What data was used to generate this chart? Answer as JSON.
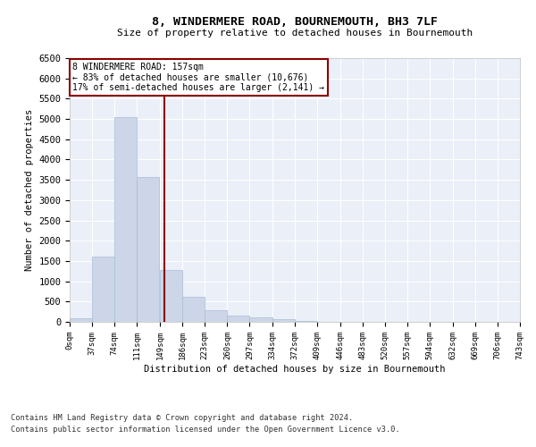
{
  "title": "8, WINDERMERE ROAD, BOURNEMOUTH, BH3 7LF",
  "subtitle": "Size of property relative to detached houses in Bournemouth",
  "xlabel": "Distribution of detached houses by size in Bournemouth",
  "ylabel": "Number of detached properties",
  "footnote1": "Contains HM Land Registry data © Crown copyright and database right 2024.",
  "footnote2": "Contains public sector information licensed under the Open Government Licence v3.0.",
  "bar_color": "#ccd6e8",
  "bar_edgecolor": "#a8bcd6",
  "background_color": "#eaeff8",
  "vline_color": "#8b0000",
  "vline_x": 157,
  "annotation_text": "8 WINDERMERE ROAD: 157sqm\n← 83% of detached houses are smaller (10,676)\n17% of semi-detached houses are larger (2,141) →",
  "annotation_box_edgecolor": "#8b0000",
  "ylim": [
    0,
    6500
  ],
  "bin_edges": [
    0,
    37,
    74,
    111,
    149,
    186,
    223,
    260,
    297,
    334,
    372,
    409,
    446,
    483,
    520,
    557,
    594,
    632,
    669,
    706,
    743
  ],
  "bin_labels": [
    "0sqm",
    "37sqm",
    "74sqm",
    "111sqm",
    "149sqm",
    "186sqm",
    "223sqm",
    "260sqm",
    "297sqm",
    "334sqm",
    "372sqm",
    "409sqm",
    "446sqm",
    "483sqm",
    "520sqm",
    "557sqm",
    "594sqm",
    "632sqm",
    "669sqm",
    "706sqm",
    "743sqm"
  ],
  "bar_heights": [
    80,
    1600,
    5050,
    3580,
    1270,
    620,
    290,
    150,
    100,
    60,
    30,
    10,
    5,
    2,
    1,
    0,
    0,
    0,
    0,
    0
  ],
  "yticks": [
    0,
    500,
    1000,
    1500,
    2000,
    2500,
    3000,
    3500,
    4000,
    4500,
    5000,
    5500,
    6000,
    6500
  ]
}
